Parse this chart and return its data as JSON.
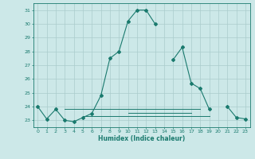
{
  "x": [
    0,
    1,
    2,
    3,
    4,
    5,
    6,
    7,
    8,
    9,
    10,
    11,
    12,
    13,
    14,
    15,
    16,
    17,
    18,
    19,
    20,
    21,
    22,
    23
  ],
  "y_main": [
    24.0,
    23.1,
    23.8,
    23.0,
    22.9,
    23.2,
    23.5,
    24.8,
    27.5,
    28.0,
    30.2,
    31.0,
    31.0,
    30.0,
    null,
    27.4,
    28.3,
    25.7,
    25.3,
    23.8,
    null,
    24.0,
    23.2,
    23.1
  ],
  "y_line1": [
    null,
    null,
    null,
    23.8,
    23.8,
    23.8,
    23.8,
    23.8,
    23.8,
    23.8,
    23.8,
    23.8,
    23.8,
    23.8,
    23.8,
    23.8,
    23.8,
    23.8,
    23.8,
    null,
    null,
    null,
    null,
    null
  ],
  "y_line2": [
    null,
    null,
    null,
    null,
    null,
    23.3,
    23.3,
    23.3,
    23.3,
    23.3,
    23.3,
    23.3,
    23.3,
    23.3,
    23.3,
    23.3,
    23.3,
    23.3,
    23.3,
    23.3,
    null,
    null,
    null,
    null
  ],
  "y_line3": [
    null,
    null,
    null,
    null,
    null,
    null,
    null,
    null,
    null,
    null,
    23.55,
    23.55,
    23.55,
    23.55,
    23.55,
    23.55,
    23.55,
    23.55,
    null,
    null,
    null,
    null,
    null,
    null
  ],
  "line_color": "#1a7a6e",
  "bg_color": "#cce8e8",
  "grid_color": "#aacccc",
  "xlabel": "Humidex (Indice chaleur)",
  "xlim": [
    -0.5,
    23.5
  ],
  "ylim": [
    22.5,
    31.5
  ],
  "yticks": [
    23,
    24,
    25,
    26,
    27,
    28,
    29,
    30,
    31
  ],
  "xticks": [
    0,
    1,
    2,
    3,
    4,
    5,
    6,
    7,
    8,
    9,
    10,
    11,
    12,
    13,
    14,
    15,
    16,
    17,
    18,
    19,
    20,
    21,
    22,
    23
  ]
}
